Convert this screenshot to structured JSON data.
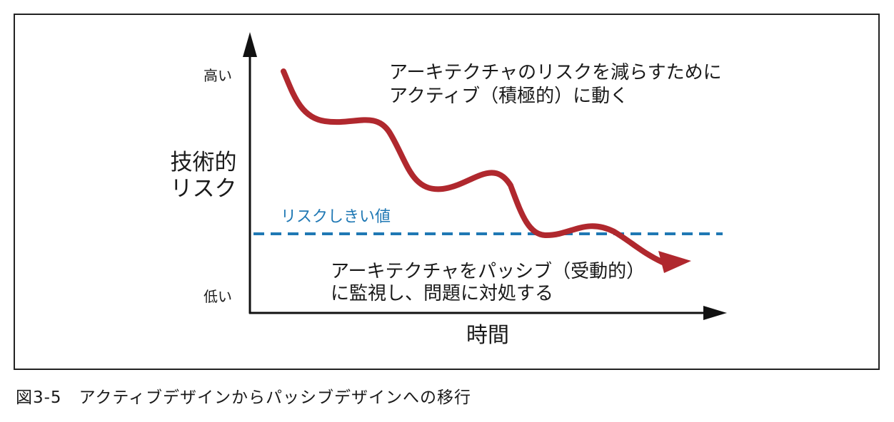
{
  "diagram": {
    "y_axis_label": [
      "技術的",
      "リスク"
    ],
    "y_high": "高い",
    "y_low": "低い",
    "x_axis_label": "時間",
    "threshold_label": "リスクしきい値",
    "active_note": [
      "アーキテクチャのリスクを減らすために",
      "アクティブ（積極的）に動く"
    ],
    "passive_note": [
      "アーキテクチャをパッシブ（受動的）",
      "に監視し、問題に対処する"
    ],
    "colors": {
      "curve": "#b0282e",
      "threshold": "#1f78b4",
      "axis": "#111111"
    }
  },
  "caption": "図3-5　アクティブデザインからパッシブデザインへの移行"
}
